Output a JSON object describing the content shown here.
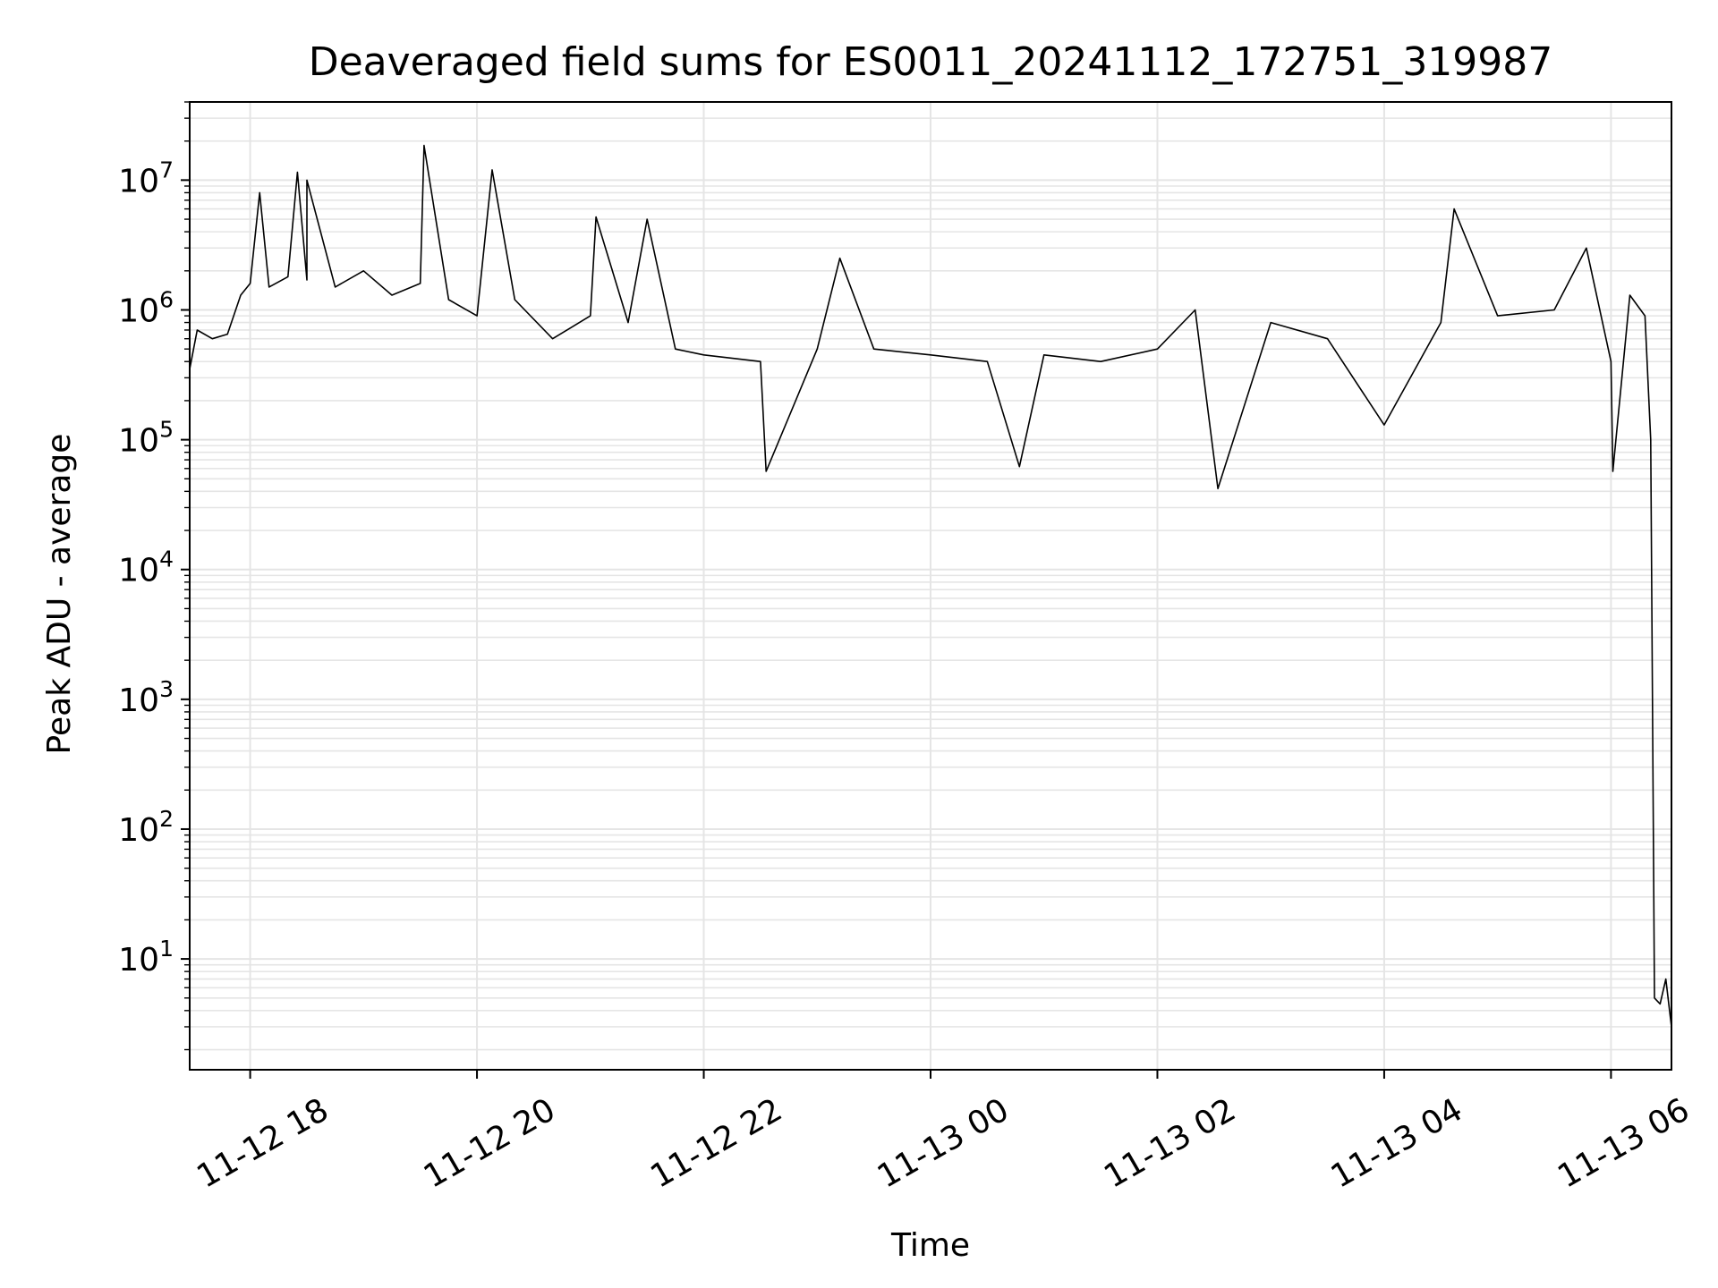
{
  "chart_data": {
    "type": "line",
    "title": "Deaveraged field sums for ES0011_20241112_172751_319987",
    "xlabel": "Time",
    "ylabel": "Peak ADU - average",
    "y_scale": "log",
    "ylim": [
      1.4,
      40000000
    ],
    "xlim": [
      "2024-11-12 17:28",
      "2024-11-13 06:32"
    ],
    "grid": true,
    "colors": {
      "line": "#000000",
      "grid": "#e5e5e5",
      "axes": "#000000"
    },
    "x_ticks": [
      {
        "label": "11-12 18",
        "time": "2024-11-12 18:00"
      },
      {
        "label": "11-12 20",
        "time": "2024-11-12 20:00"
      },
      {
        "label": "11-12 22",
        "time": "2024-11-12 22:00"
      },
      {
        "label": "11-13 00",
        "time": "2024-11-13 00:00"
      },
      {
        "label": "11-13 02",
        "time": "2024-11-13 02:00"
      },
      {
        "label": "11-13 04",
        "time": "2024-11-13 04:00"
      },
      {
        "label": "11-13 06",
        "time": "2024-11-13 06:00"
      }
    ],
    "y_ticks": [
      {
        "base": "10",
        "exp": "1",
        "value": 10
      },
      {
        "base": "10",
        "exp": "2",
        "value": 100
      },
      {
        "base": "10",
        "exp": "3",
        "value": 1000
      },
      {
        "base": "10",
        "exp": "4",
        "value": 10000
      },
      {
        "base": "10",
        "exp": "5",
        "value": 100000
      },
      {
        "base": "10",
        "exp": "6",
        "value": 1000000
      },
      {
        "base": "10",
        "exp": "7",
        "value": 10000000
      }
    ],
    "series": [
      {
        "points": [
          [
            "2024-11-12 17:28",
            350000
          ],
          [
            "2024-11-12 17:32",
            700000
          ],
          [
            "2024-11-12 17:40",
            600000
          ],
          [
            "2024-11-12 17:48",
            650000
          ],
          [
            "2024-11-12 17:55",
            1300000
          ],
          [
            "2024-11-12 18:00",
            1600000
          ],
          [
            "2024-11-12 18:05",
            8000000
          ],
          [
            "2024-11-12 18:10",
            1500000
          ],
          [
            "2024-11-12 18:20",
            1800000
          ],
          [
            "2024-11-12 18:25",
            11500000
          ],
          [
            "2024-11-12 18:30",
            1700000
          ],
          [
            "2024-11-12 18:30",
            10000000
          ],
          [
            "2024-11-12 18:45",
            1500000
          ],
          [
            "2024-11-12 19:00",
            2000000
          ],
          [
            "2024-11-12 19:15",
            1300000
          ],
          [
            "2024-11-12 19:30",
            1600000
          ],
          [
            "2024-11-12 19:32",
            18500000
          ],
          [
            "2024-11-12 19:45",
            1200000
          ],
          [
            "2024-11-12 20:00",
            900000
          ],
          [
            "2024-11-12 20:08",
            12000000
          ],
          [
            "2024-11-12 20:20",
            1200000
          ],
          [
            "2024-11-12 20:40",
            600000
          ],
          [
            "2024-11-12 21:00",
            900000
          ],
          [
            "2024-11-12 21:03",
            5200000
          ],
          [
            "2024-11-12 21:20",
            800000
          ],
          [
            "2024-11-12 21:30",
            5000000
          ],
          [
            "2024-11-12 21:45",
            500000
          ],
          [
            "2024-11-12 22:00",
            450000
          ],
          [
            "2024-11-12 22:30",
            400000
          ],
          [
            "2024-11-12 22:33",
            57000
          ],
          [
            "2024-11-12 23:00",
            500000
          ],
          [
            "2024-11-12 23:12",
            2500000
          ],
          [
            "2024-11-12 23:30",
            500000
          ],
          [
            "2024-11-13 00:00",
            450000
          ],
          [
            "2024-11-13 00:30",
            400000
          ],
          [
            "2024-11-13 00:47",
            62000
          ],
          [
            "2024-11-13 01:00",
            450000
          ],
          [
            "2024-11-13 01:30",
            400000
          ],
          [
            "2024-11-13 02:00",
            500000
          ],
          [
            "2024-11-13 02:20",
            1000000
          ],
          [
            "2024-11-13 02:32",
            42000
          ],
          [
            "2024-11-13 03:00",
            800000
          ],
          [
            "2024-11-13 03:30",
            600000
          ],
          [
            "2024-11-13 04:00",
            130000
          ],
          [
            "2024-11-13 04:30",
            800000
          ],
          [
            "2024-11-13 04:37",
            6000000
          ],
          [
            "2024-11-13 05:00",
            900000
          ],
          [
            "2024-11-13 05:30",
            1000000
          ],
          [
            "2024-11-13 05:47",
            3000000
          ],
          [
            "2024-11-13 06:00",
            400000
          ],
          [
            "2024-11-13 06:01",
            57000
          ],
          [
            "2024-11-13 06:10",
            1300000
          ],
          [
            "2024-11-13 06:18",
            900000
          ],
          [
            "2024-11-13 06:21",
            100000
          ],
          [
            "2024-11-13 06:23",
            5
          ],
          [
            "2024-11-13 06:26",
            4.5
          ],
          [
            "2024-11-13 06:29",
            7
          ],
          [
            "2024-11-13 06:32",
            3
          ]
        ]
      }
    ]
  }
}
